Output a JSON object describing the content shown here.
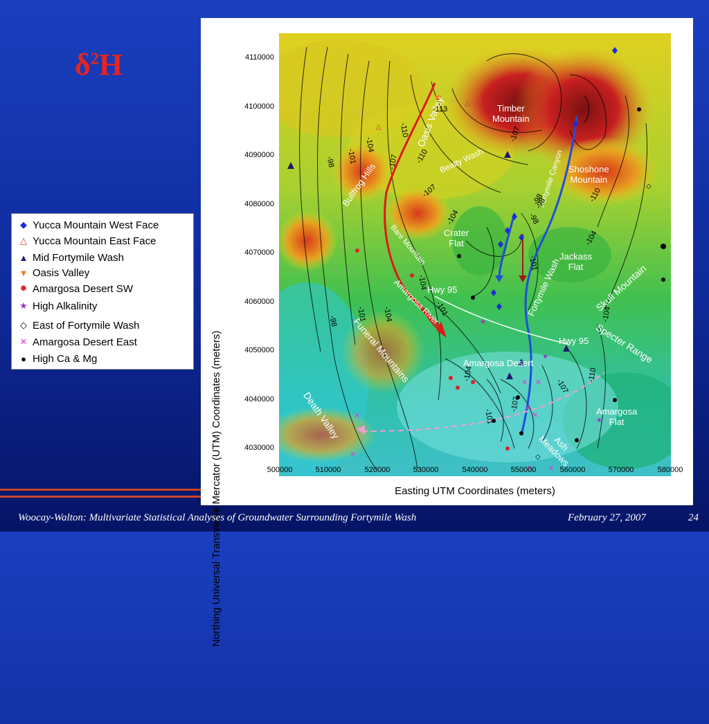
{
  "slide": {
    "title_base": "δ",
    "title_sup": "2",
    "title_tail": "H"
  },
  "figure": {
    "ylabel": "Northing Universal Transverse Mercator (UTM) Coordinates (meters)",
    "xlabel": "Easting UTM Coordinates (meters)",
    "yticks": [
      "4110000",
      "4100000",
      "4090000",
      "4080000",
      "4070000",
      "4060000",
      "4050000",
      "4040000",
      "4030000"
    ],
    "xticks": [
      "500000",
      "510000",
      "520000",
      "530000",
      "540000",
      "550000",
      "560000",
      "570000",
      "580000"
    ]
  },
  "map_labels": {
    "timber_mountain": "Timber\nMountain",
    "shoshone_mountain": "Shoshone\nMountain",
    "oasis_valley": "Oasis Valley",
    "beatty_wash": "Beatty Wash",
    "bullfrog_hills": "Bullfrog Hills",
    "fortymile_canyon": "Fortymile Canyon",
    "bare_mountain": "Bare Mountain",
    "crater_flat": "Crater\nFlat",
    "jackass_flat": "Jackass\nFlat",
    "amargosa_river": "Amargosa River",
    "hwy95_a": "Hwy 95",
    "hwy95_b": "Hwy 95",
    "fortymile_wash": "Fortymile Wash",
    "skull_mountain": "Skull Mountain",
    "funeral_mountains": "Funeral Mountains",
    "specter_range": "Specter Range",
    "amargosa_desert": "Amargosa Desert",
    "death_valley": "Death Valley",
    "ash_meadows": "Ash\nMeadows",
    "amargosa_flat": "Amargosa\nFlat"
  },
  "contour_labels": [
    "-113",
    "-110",
    "-110",
    "-107",
    "-104",
    "-101",
    "-98",
    "-107",
    "-104",
    "-98",
    "-98",
    "-104",
    "-101",
    "-104",
    "-101",
    "-98",
    "-104",
    "-101",
    "-107",
    "-110",
    "-107",
    "-104",
    "-98",
    "-107",
    "-104",
    "-101",
    "-110"
  ],
  "legend": {
    "items": [
      {
        "label": "Yucca Mountain West Face",
        "symbol": "◆",
        "color": "#1a2fd6"
      },
      {
        "label": "Yucca Mountain East Face",
        "symbol": "△",
        "color": "#c0392b"
      },
      {
        "label": "Mid Fortymile Wash",
        "symbol": "▲",
        "color": "#1a1a6e"
      },
      {
        "label": "Oasis Valley",
        "symbol": "▼",
        "color": "#f07a1a"
      },
      {
        "label": "Amargosa Desert SW",
        "symbol": "✸",
        "color": "#e0202a"
      },
      {
        "label": "High Alkalinity",
        "symbol": "★",
        "color": "#9b30c8"
      },
      {
        "label": "East of Fortymile Wash",
        "symbol": "◇",
        "color": "#000000"
      },
      {
        "label": "Amargosa Desert East",
        "symbol": "✕",
        "color": "#e03ad8"
      },
      {
        "label": "High Ca & Mg",
        "symbol": "●",
        "color": "#000000"
      }
    ]
  },
  "footer": {
    "left": "Woocay-Walton: Multivariate Statistical Analyses of Groundwater Surrounding Fortymile Wash",
    "date": "February 27, 2007",
    "page": "24"
  },
  "colors": {
    "background": "#1238b0",
    "title": "#e8241d",
    "footer_rule": "#c8462a"
  }
}
